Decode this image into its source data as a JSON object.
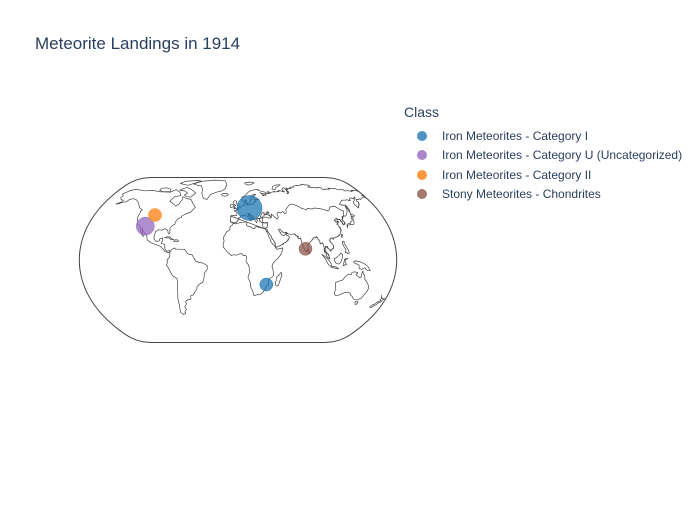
{
  "title": "Meteorite Landings in 1914",
  "legend": {
    "title": "Class",
    "items": [
      {
        "label": "Iron Meteorites - Category I",
        "color": "#1f77b4"
      },
      {
        "label": "Iron Meteorites - Category U (Uncategorized)",
        "color": "#9467bd"
      },
      {
        "label": "Iron Meteorites - Category II",
        "color": "#ff7f0e"
      },
      {
        "label": "Stony Meteorites - Chondrites",
        "color": "#8c564b"
      }
    ]
  },
  "chart_data": {
    "type": "scatter",
    "projection": "natural earth",
    "title": "Meteorite Landings in 1914",
    "legend_title": "Class",
    "legend_position": "top-right",
    "series": [
      {
        "name": "Iron Meteorites - Category I",
        "color": "#1f77b4",
        "points": [
          {
            "lat": 51.0,
            "lon": 15.0,
            "size": "large"
          },
          {
            "lat": -24.0,
            "lon": 33.0,
            "size": "small"
          }
        ]
      },
      {
        "name": "Iron Meteorites - Category U (Uncategorized)",
        "color": "#9467bd",
        "points": [
          {
            "lat": 33.0,
            "lon": -111.0,
            "size": "medium"
          }
        ]
      },
      {
        "name": "Iron Meteorites - Category II",
        "color": "#ff7f0e",
        "points": [
          {
            "lat": 44.0,
            "lon": -104.0,
            "size": "small"
          }
        ]
      },
      {
        "name": "Stony Meteorites - Chondrites",
        "color": "#8c564b",
        "points": [
          {
            "lat": 11.0,
            "lon": 77.0,
            "size": "small"
          }
        ]
      }
    ]
  }
}
